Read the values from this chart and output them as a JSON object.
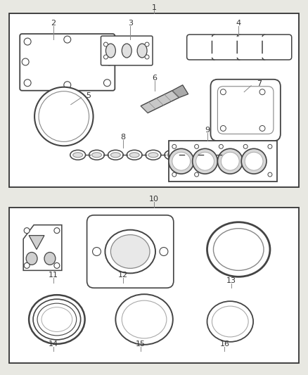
{
  "bg_color": "#e8e8e2",
  "box_fc": "#ffffff",
  "box_ec": "#333333",
  "pc": "#444444",
  "tc": "#333333",
  "fig_width": 4.38,
  "fig_height": 5.33,
  "dpi": 100
}
